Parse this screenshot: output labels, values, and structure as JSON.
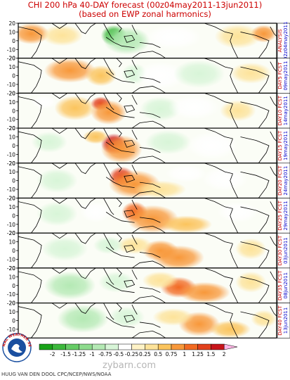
{
  "header": {
    "title_line1": "CHI 200 hPa 40-DAY forecast (00z04may2011-13jun2011)",
    "title_line2": "(based on EWP zonal harmonics)"
  },
  "chart_data": {
    "type": "heatmap",
    "title": "CHI 200 hPa 40-DAY forecast (00z04may2011-13jun2011)",
    "subtitle": "(based on EWP zonal harmonics)",
    "y_tick_labels": [
      "20",
      "10",
      "0",
      "-10",
      "-20"
    ],
    "y_range": [
      -20,
      20
    ],
    "colorbar": {
      "ticks": [
        "-2",
        "-1.5",
        "-1.25",
        "-1",
        "-0.75",
        "-0.5",
        "-0.25",
        "0.25",
        "0.5",
        "0.75",
        "1",
        "1.25",
        "1.5",
        "2"
      ],
      "colors": [
        "#19a319",
        "#3cb83c",
        "#66cc66",
        "#8ddb8d",
        "#b4e9b4",
        "#d8f5d8",
        "#ffffff",
        "#fff3c7",
        "#fde39a",
        "#fbc45d",
        "#f8983a",
        "#f26a22",
        "#e2401c",
        "#c8141a",
        "#ffb6e6"
      ]
    },
    "panels": [
      {
        "label": "ANALYSIS",
        "date": "02z04may2011",
        "anomalies": [
          {
            "lon": 0.05,
            "lat": 8,
            "value": 0.8,
            "w": 0.07,
            "h": 12
          },
          {
            "lon": 0.17,
            "lat": 6,
            "value": 0.5,
            "w": 0.08,
            "h": 12
          },
          {
            "lon": 0.37,
            "lat": 6,
            "value": -1.5,
            "w": 0.05,
            "h": 12
          },
          {
            "lon": 0.42,
            "lat": 0,
            "value": -0.75,
            "w": 0.09,
            "h": 16
          },
          {
            "lon": 0.6,
            "lat": 4,
            "value": -0.4,
            "w": 0.11,
            "h": 14
          },
          {
            "lon": 0.85,
            "lat": 5,
            "value": 0.5,
            "w": 0.09,
            "h": 14
          },
          {
            "lon": 0.95,
            "lat": 8,
            "value": 0.8,
            "w": 0.05,
            "h": 10
          }
        ]
      },
      {
        "label": "DAY5 FCST",
        "date": "09may2011",
        "anomalies": [
          {
            "lon": 0.2,
            "lat": 6,
            "value": 0.9,
            "w": 0.1,
            "h": 14
          },
          {
            "lon": 0.32,
            "lat": 0,
            "value": 0.7,
            "w": 0.06,
            "h": 12
          },
          {
            "lon": 0.45,
            "lat": 2,
            "value": -0.6,
            "w": 0.05,
            "h": 12
          },
          {
            "lon": 0.55,
            "lat": 0,
            "value": -0.4,
            "w": 0.1,
            "h": 16
          },
          {
            "lon": 0.7,
            "lat": 2,
            "value": -0.5,
            "w": 0.1,
            "h": 16
          },
          {
            "lon": 0.9,
            "lat": 3,
            "value": 0.3,
            "w": 0.08,
            "h": 12
          }
        ]
      },
      {
        "label": "DAY10 FCST",
        "date": "14may2011",
        "anomalies": [
          {
            "lon": 0.22,
            "lat": 3,
            "value": 0.6,
            "w": 0.08,
            "h": 14
          },
          {
            "lon": 0.32,
            "lat": 8,
            "value": 1.3,
            "w": 0.04,
            "h": 8
          },
          {
            "lon": 0.35,
            "lat": -2,
            "value": 0.8,
            "w": 0.07,
            "h": 14
          },
          {
            "lon": 0.55,
            "lat": 2,
            "value": -0.5,
            "w": 0.08,
            "h": 14
          },
          {
            "lon": 0.68,
            "lat": 4,
            "value": -0.4,
            "w": 0.1,
            "h": 14
          },
          {
            "lon": 0.1,
            "lat": 10,
            "value": -0.4,
            "w": 0.05,
            "h": 8
          },
          {
            "lon": 0.85,
            "lat": 0,
            "value": 0.3,
            "w": 0.07,
            "h": 12
          }
        ]
      },
      {
        "label": "DAY15 FCST",
        "date": "19may2011",
        "anomalies": [
          {
            "lon": 0.37,
            "lat": 2,
            "value": 1.6,
            "w": 0.05,
            "h": 12
          },
          {
            "lon": 0.4,
            "lat": -4,
            "value": 1.0,
            "w": 0.08,
            "h": 16
          },
          {
            "lon": 0.3,
            "lat": 10,
            "value": 0.6,
            "w": 0.05,
            "h": 8
          },
          {
            "lon": 0.12,
            "lat": 4,
            "value": -0.5,
            "w": 0.07,
            "h": 12
          },
          {
            "lon": 0.58,
            "lat": 4,
            "value": -0.5,
            "w": 0.09,
            "h": 14
          },
          {
            "lon": 0.75,
            "lat": 0,
            "value": -0.4,
            "w": 0.1,
            "h": 16
          }
        ]
      },
      {
        "label": "DAY20 FCST",
        "date": "24may2011",
        "anomalies": [
          {
            "lon": 0.4,
            "lat": 4,
            "value": 1.4,
            "w": 0.05,
            "h": 12
          },
          {
            "lon": 0.45,
            "lat": -4,
            "value": 0.9,
            "w": 0.1,
            "h": 16
          },
          {
            "lon": 0.55,
            "lat": -10,
            "value": 0.5,
            "w": 0.1,
            "h": 10
          },
          {
            "lon": 0.15,
            "lat": 0,
            "value": -0.6,
            "w": 0.08,
            "h": 14
          },
          {
            "lon": 0.65,
            "lat": 8,
            "value": -0.4,
            "w": 0.08,
            "h": 10
          },
          {
            "lon": 0.8,
            "lat": 2,
            "value": -0.4,
            "w": 0.09,
            "h": 14
          }
        ]
      },
      {
        "label": "DAY25 FCST",
        "date": "29may2011",
        "anomalies": [
          {
            "lon": 0.45,
            "lat": 4,
            "value": 1.2,
            "w": 0.05,
            "h": 12
          },
          {
            "lon": 0.52,
            "lat": -4,
            "value": 0.9,
            "w": 0.1,
            "h": 16
          },
          {
            "lon": 0.65,
            "lat": -10,
            "value": 0.6,
            "w": 0.1,
            "h": 10
          },
          {
            "lon": 0.15,
            "lat": 2,
            "value": -0.6,
            "w": 0.08,
            "h": 14
          },
          {
            "lon": 0.3,
            "lat": 4,
            "value": -0.4,
            "w": 0.06,
            "h": 12
          },
          {
            "lon": 0.85,
            "lat": 4,
            "value": -0.3,
            "w": 0.08,
            "h": 12
          }
        ]
      },
      {
        "label": "DAY30 FCST",
        "date": "03jun2011",
        "anomalies": [
          {
            "lon": 0.55,
            "lat": 0,
            "value": 1.0,
            "w": 0.07,
            "h": 12
          },
          {
            "lon": 0.62,
            "lat": -8,
            "value": 0.8,
            "w": 0.1,
            "h": 14
          },
          {
            "lon": 0.45,
            "lat": 6,
            "value": 0.5,
            "w": 0.07,
            "h": 10
          },
          {
            "lon": 0.18,
            "lat": 2,
            "value": -0.7,
            "w": 0.09,
            "h": 14
          },
          {
            "lon": 0.35,
            "lat": 6,
            "value": -0.5,
            "w": 0.06,
            "h": 10
          },
          {
            "lon": 0.9,
            "lat": 2,
            "value": 0.3,
            "w": 0.06,
            "h": 12
          }
        ]
      },
      {
        "label": "DAY35 FCST",
        "date": "08jun2011",
        "anomalies": [
          {
            "lon": 0.62,
            "lat": -2,
            "value": 1.1,
            "w": 0.07,
            "h": 12
          },
          {
            "lon": 0.72,
            "lat": -8,
            "value": 0.8,
            "w": 0.1,
            "h": 12
          },
          {
            "lon": 0.55,
            "lat": 6,
            "value": 0.5,
            "w": 0.07,
            "h": 10
          },
          {
            "lon": 0.2,
            "lat": 0,
            "value": -0.8,
            "w": 0.1,
            "h": 16
          },
          {
            "lon": 0.38,
            "lat": 4,
            "value": -0.5,
            "w": 0.07,
            "h": 12
          },
          {
            "lon": 0.9,
            "lat": 4,
            "value": 0.4,
            "w": 0.06,
            "h": 12
          }
        ]
      },
      {
        "label": "DAY40 FCST",
        "date": "13jun2011",
        "anomalies": [
          {
            "lon": 0.7,
            "lat": -4,
            "value": 1.0,
            "w": 0.08,
            "h": 14
          },
          {
            "lon": 0.6,
            "lat": 4,
            "value": 0.5,
            "w": 0.08,
            "h": 10
          },
          {
            "lon": 0.82,
            "lat": -10,
            "value": 0.6,
            "w": 0.08,
            "h": 10
          },
          {
            "lon": 0.25,
            "lat": 2,
            "value": -0.8,
            "w": 0.1,
            "h": 16
          },
          {
            "lon": 0.42,
            "lat": 4,
            "value": -0.5,
            "w": 0.07,
            "h": 12
          },
          {
            "lon": 0.95,
            "lat": 2,
            "value": 0.4,
            "w": 0.05,
            "h": 10
          }
        ]
      }
    ]
  },
  "logo": {
    "text": "NATIONAL WEATHER SERVICE"
  },
  "footer": {
    "credit": "HUUG VAN DEN DOOL CPC/NCEP/NWS/NOAA",
    "watermark": "zybarn.com"
  },
  "colors": {
    "title": "#cc0000",
    "panel_label": "#cc0000",
    "panel_date": "#0000cc",
    "coast": "#000000",
    "logo_blue": "#1a4fa0",
    "logo_red": "#cc1111"
  }
}
